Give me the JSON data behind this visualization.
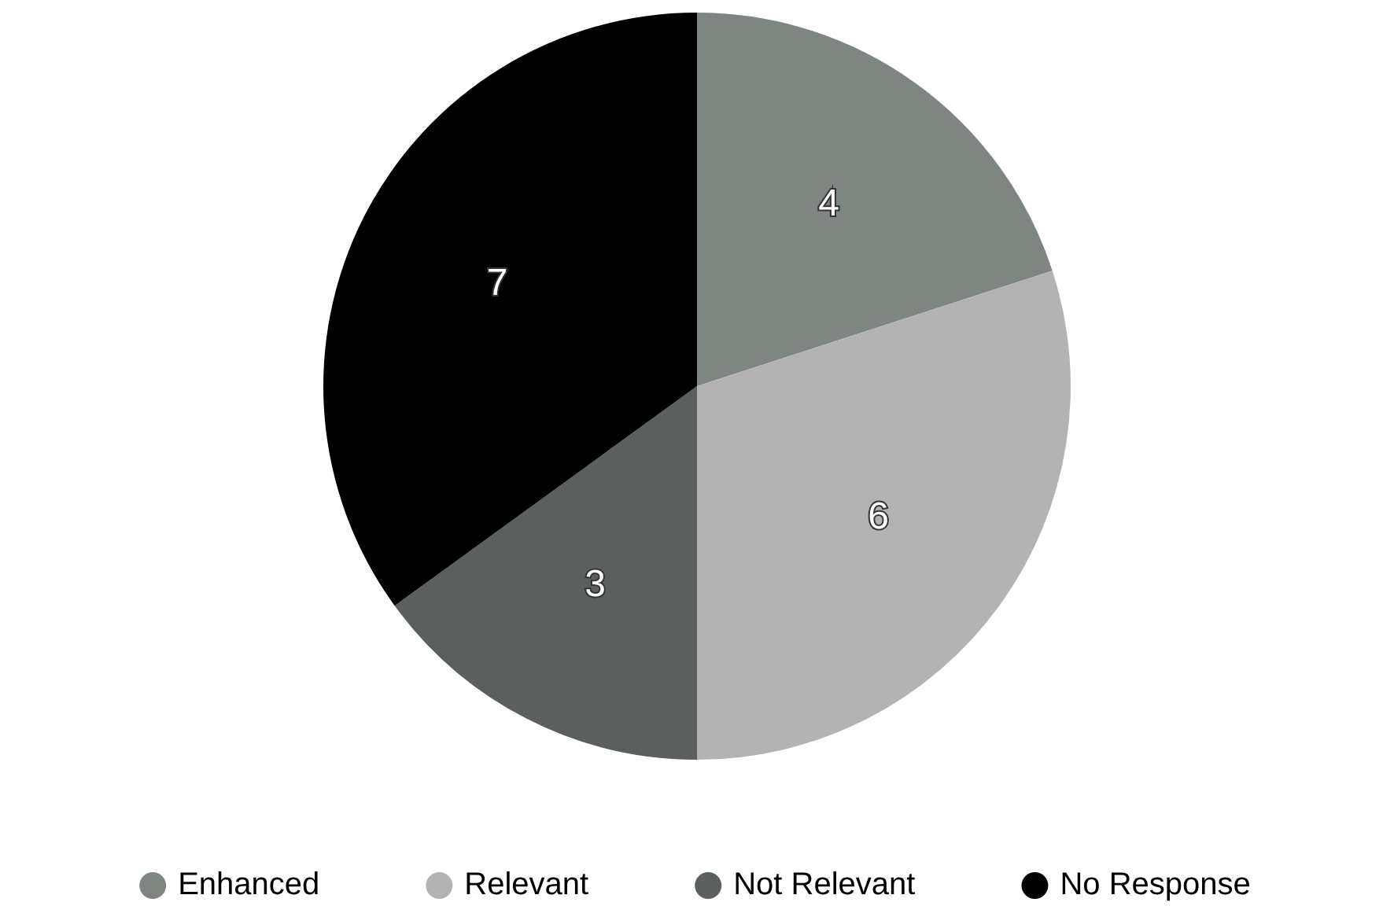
{
  "chart_data": {
    "type": "pie",
    "categories": [
      "Enhanced",
      "Relevant",
      "Not Relevant",
      "No Response"
    ],
    "values": [
      4,
      6,
      3,
      7
    ],
    "colors": [
      "#7f8682",
      "#b3b3b3",
      "#5b5f5d",
      "#000000"
    ],
    "data_labels": true,
    "legend": "bottom"
  }
}
